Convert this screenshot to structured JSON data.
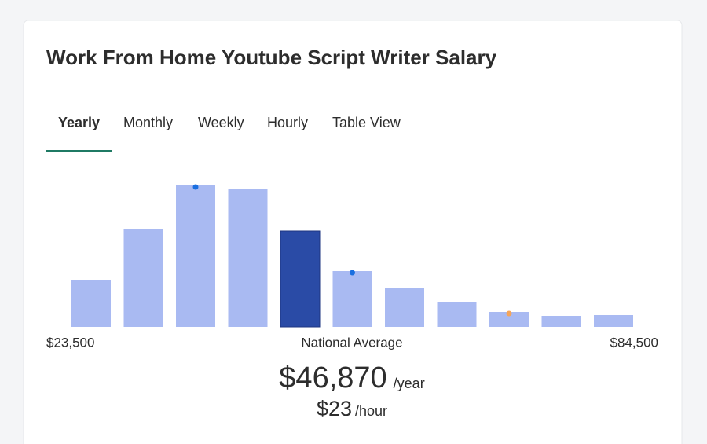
{
  "header": {
    "title": "Work From Home Youtube Script Writer Salary"
  },
  "tabs": {
    "items": [
      "Yearly",
      "Monthly",
      "Weekly",
      "Hourly",
      "Table View"
    ],
    "active": 0
  },
  "chart_data": {
    "type": "bar",
    "values": [
      60,
      124,
      180,
      175,
      122,
      71,
      50,
      32,
      19,
      14,
      15
    ],
    "color": "#a9baf2",
    "highlight_index": 4,
    "highlight_color": "#2a4ba6",
    "markers": [
      {
        "index": 2,
        "color": "#1a6fe0"
      },
      {
        "index": 5,
        "color": "#1a6fe0"
      },
      {
        "index": 8,
        "color": "#f5a55a"
      }
    ],
    "min_label": "$23,500",
    "center_label": "National Average",
    "max_label": "$84,500"
  },
  "salary": {
    "yearly": "$46,870",
    "yearly_unit": "/year",
    "hourly": "$23",
    "hourly_unit": "/hour"
  }
}
